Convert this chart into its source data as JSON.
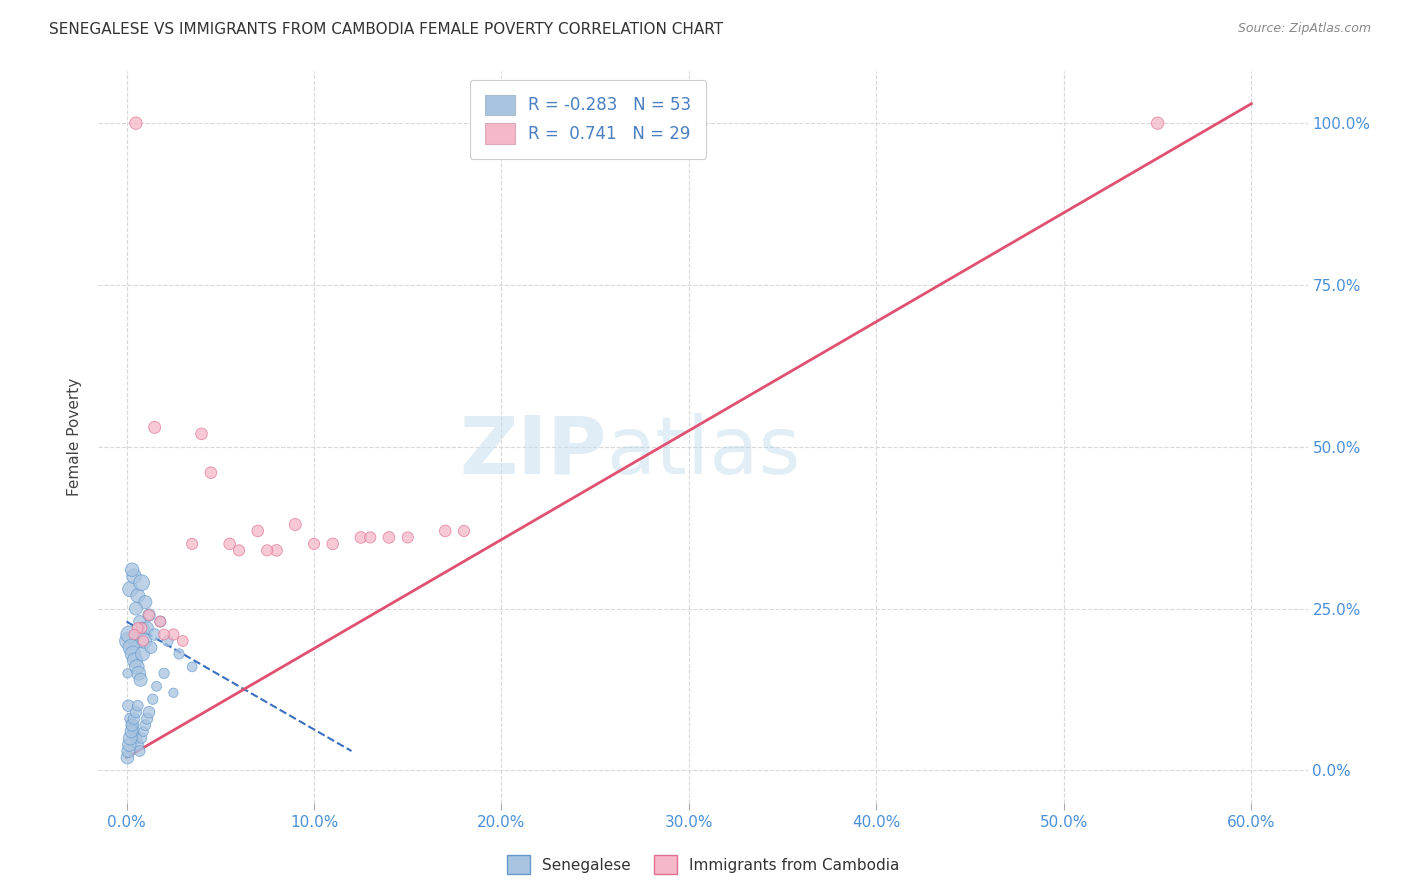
{
  "title": "SENEGALESE VS IMMIGRANTS FROM CAMBODIA FEMALE POVERTY CORRELATION CHART",
  "source": "Source: ZipAtlas.com",
  "xlabel_ticks": [
    0.0,
    10.0,
    20.0,
    30.0,
    40.0,
    50.0,
    60.0
  ],
  "ylabel_ticks": [
    0.0,
    25.0,
    50.0,
    75.0,
    100.0
  ],
  "xlim": [
    -1.5,
    63
  ],
  "ylim": [
    -5,
    108
  ],
  "ylabel": "Female Poverty",
  "legend_entry_blue": "R = -0.283   N = 53",
  "legend_entry_pink": "R =  0.741   N = 29",
  "watermark_zip": "ZIP",
  "watermark_atlas": "atlas",
  "blue_scatter": {
    "x": [
      0.2,
      0.4,
      0.6,
      0.8,
      1.0,
      1.2,
      0.3,
      0.5,
      0.7,
      0.9,
      0.1,
      0.15,
      0.25,
      0.35,
      0.45,
      0.55,
      0.65,
      0.75,
      0.85,
      0.95,
      1.1,
      1.3,
      1.5,
      1.8,
      2.2,
      2.8,
      3.5,
      0.05,
      0.1,
      0.2,
      0.3,
      0.4,
      0.5,
      0.6,
      0.7,
      0.8,
      0.9,
      1.0,
      1.1,
      1.2,
      1.4,
      1.6,
      2.0,
      2.5,
      0.05,
      0.1,
      0.15,
      0.2,
      0.25,
      0.3,
      0.4,
      0.5,
      0.6
    ],
    "y": [
      28,
      30,
      27,
      29,
      26,
      24,
      31,
      25,
      23,
      22,
      20,
      21,
      19,
      18,
      17,
      16,
      15,
      14,
      18,
      20,
      22,
      19,
      21,
      23,
      20,
      18,
      16,
      15,
      10,
      8,
      7,
      6,
      5,
      4,
      3,
      5,
      6,
      7,
      8,
      9,
      11,
      13,
      15,
      12,
      2,
      3,
      4,
      5,
      6,
      7,
      8,
      9,
      10
    ],
    "sizes": [
      120,
      110,
      100,
      130,
      90,
      80,
      95,
      85,
      75,
      70,
      160,
      150,
      140,
      130,
      120,
      110,
      100,
      90,
      100,
      110,
      80,
      75,
      70,
      65,
      60,
      55,
      50,
      45,
      70,
      65,
      80,
      75,
      70,
      65,
      60,
      55,
      50,
      60,
      65,
      70,
      55,
      50,
      55,
      45,
      85,
      90,
      95,
      100,
      80,
      75,
      70,
      65,
      60
    ],
    "color": "#a8c4e0",
    "edge_color": "#6699cc"
  },
  "pink_scatter": {
    "x": [
      0.5,
      1.5,
      2.5,
      4.0,
      5.5,
      7.0,
      9.0,
      11.0,
      14.0,
      17.0,
      4.5,
      8.0,
      12.5,
      55.0,
      0.8,
      1.8,
      3.0,
      6.0,
      10.0,
      15.0,
      0.6,
      1.2,
      2.0,
      3.5,
      7.5,
      13.0,
      18.0,
      0.4,
      0.9
    ],
    "y": [
      100,
      53,
      21,
      52,
      35,
      37,
      38,
      35,
      36,
      37,
      46,
      34,
      36,
      100,
      22,
      23,
      20,
      34,
      35,
      36,
      22,
      24,
      21,
      35,
      34,
      36,
      37,
      21,
      20
    ],
    "sizes": [
      80,
      75,
      65,
      70,
      70,
      70,
      75,
      70,
      70,
      70,
      70,
      70,
      70,
      80,
      60,
      60,
      60,
      65,
      65,
      65,
      60,
      60,
      60,
      65,
      65,
      65,
      65,
      55,
      55
    ],
    "color": "#f4b8c8",
    "edge_color": "#e07090"
  },
  "blue_trend": {
    "x": [
      0.0,
      12.0
    ],
    "y": [
      23.0,
      3.0
    ],
    "color": "#3a6fc1",
    "linestyle": "dashed",
    "linewidth": 1.5
  },
  "pink_trend": {
    "x": [
      0.0,
      60.0
    ],
    "y": [
      2.0,
      103.0
    ],
    "color": "#e05070",
    "linestyle": "solid",
    "linewidth": 2.0
  },
  "grid_color": "#d8d8d8",
  "bg_color": "#ffffff",
  "title_color": "#333333",
  "axis_label_color": "#444444",
  "tick_label_color": "#4a90d9",
  "right_tick_color": "#4a90d9"
}
